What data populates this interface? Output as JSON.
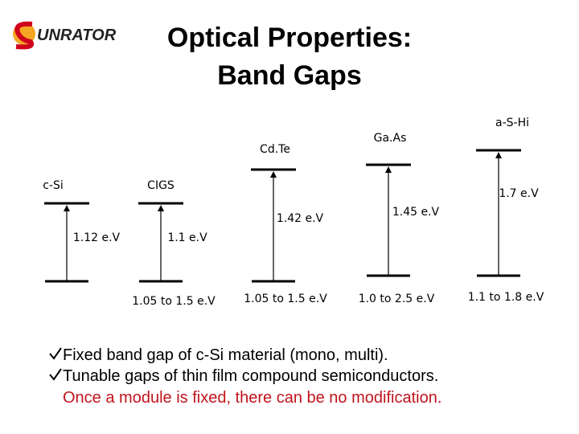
{
  "logo": {
    "text": "UNRATOR"
  },
  "title": {
    "line1": "Optical Properties:",
    "line2": "Band Gaps"
  },
  "materials": [
    {
      "name": "c-Si",
      "gap": "1.12 e.V"
    },
    {
      "name": "CIGS",
      "gap": "1.1 e.V",
      "range": "1.05 to 1.5 e.V"
    },
    {
      "name": "Cd.Te",
      "gap": "1.42 e.V",
      "range": "1.05 to 1.5 e.V"
    },
    {
      "name": "Ga.As",
      "gap": "1.45 e.V",
      "range": "1.0 to 2.5 e.V"
    },
    {
      "name": "a-S-Hi",
      "gap": "1.7 e.V",
      "range": "1.1 to 1.8 e.V"
    }
  ],
  "bullets": [
    "Fixed band gap of c-Si material (mono, multi).",
    "Tunable gaps of thin film compound semiconductors."
  ],
  "note": "Once a module is fixed, there can be no modification."
}
